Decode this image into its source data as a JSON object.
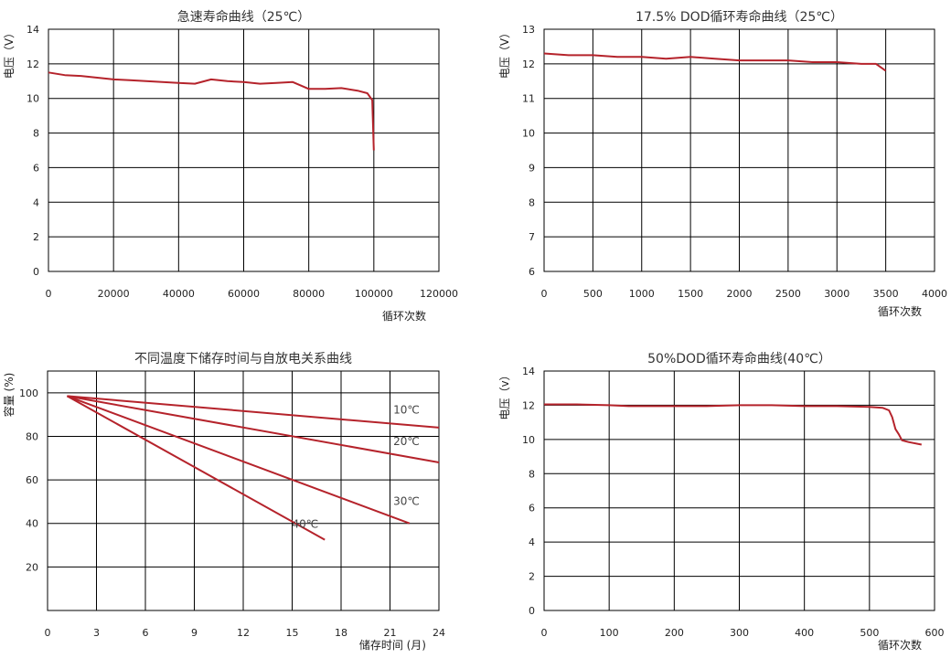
{
  "chart_data": [
    {
      "type": "line",
      "title": "急速寿命曲线（25℃）",
      "xlabel": "循环次数",
      "ylabel": "电压（V）",
      "xlim": [
        0,
        120000
      ],
      "ylim": [
        0,
        14
      ],
      "xticks": [
        "0",
        "20000",
        "40000",
        "60000",
        "80000",
        "100000",
        "120000"
      ],
      "yticks": [
        "0",
        "2",
        "4",
        "6",
        "8",
        "10",
        "12",
        "14"
      ],
      "grid": true,
      "line_color": "#b5232b",
      "series": [
        {
          "x": [
            0,
            5000,
            10000,
            15000,
            20000,
            25000,
            30000,
            35000,
            40000,
            45000,
            50000,
            55000,
            60000,
            65000,
            70000,
            75000,
            80000,
            85000,
            90000,
            95000,
            98000,
            99500,
            100000
          ],
          "y": [
            11.5,
            11.35,
            11.3,
            11.2,
            11.1,
            11.05,
            11.0,
            10.95,
            10.9,
            10.85,
            11.1,
            11.0,
            10.95,
            10.85,
            10.9,
            10.95,
            10.55,
            10.55,
            10.6,
            10.45,
            10.3,
            9.9,
            7.0
          ]
        }
      ]
    },
    {
      "type": "line",
      "title": "17.5% DOD循环寿命曲线（25℃）",
      "xlabel": "循环次数",
      "ylabel": "电压（V）",
      "xlim": [
        0,
        4000
      ],
      "ylim": [
        6,
        13
      ],
      "xticks": [
        "0",
        "500",
        "1000",
        "1500",
        "2000",
        "2500",
        "3000",
        "3500",
        "4000"
      ],
      "yticks": [
        "6",
        "7",
        "8",
        "9",
        "10",
        "11",
        "12",
        "13"
      ],
      "grid": true,
      "line_color": "#b5232b",
      "series": [
        {
          "x": [
            0,
            250,
            500,
            750,
            1000,
            1250,
            1500,
            1750,
            2000,
            2250,
            2500,
            2750,
            3000,
            3250,
            3400,
            3500
          ],
          "y": [
            12.3,
            12.25,
            12.25,
            12.2,
            12.2,
            12.15,
            12.2,
            12.15,
            12.1,
            12.1,
            12.1,
            12.05,
            12.05,
            12.0,
            12.0,
            11.8
          ]
        }
      ]
    },
    {
      "type": "line",
      "title": "不同温度下储存时间与自放电关系曲线",
      "xlabel": "储存时间 (月)",
      "ylabel": "容量 (%)",
      "xlim": [
        0,
        24
      ],
      "ylim": [
        0,
        110
      ],
      "xticks": [
        "0",
        "3",
        "6",
        "9",
        "12",
        "15",
        "18",
        "21",
        "24"
      ],
      "yticks": [
        "20",
        "40",
        "60",
        "80",
        "100"
      ],
      "grid": true,
      "line_color": "#b5232b",
      "series": [
        {
          "name": "10℃",
          "x": [
            1.2,
            24
          ],
          "y": [
            98.5,
            84
          ]
        },
        {
          "name": "20℃",
          "x": [
            1.2,
            24
          ],
          "y": [
            98.5,
            68
          ]
        },
        {
          "name": "30℃",
          "x": [
            1.2,
            22.2
          ],
          "y": [
            98.5,
            40
          ]
        },
        {
          "name": "40℃",
          "x": [
            1.2,
            17
          ],
          "y": [
            98.5,
            32.5
          ]
        }
      ],
      "annotations": [
        {
          "text": "10℃",
          "x": 21.2,
          "y": 90.5
        },
        {
          "text": "20℃",
          "x": 21.2,
          "y": 76
        },
        {
          "text": "30℃",
          "x": 21.2,
          "y": 48.5
        },
        {
          "text": "40℃",
          "x": 15.0,
          "y": 38
        }
      ]
    },
    {
      "type": "line",
      "title": "50%DOD循环寿命曲线(40℃）",
      "xlabel": "循环次数",
      "ylabel": "电压（v）",
      "xlim": [
        0,
        600
      ],
      "ylim": [
        0,
        14
      ],
      "xticks": [
        "0",
        "100",
        "200",
        "300",
        "400",
        "500",
        "600"
      ],
      "yticks": [
        "0",
        "2",
        "4",
        "6",
        "8",
        "10",
        "12",
        "14"
      ],
      "grid": true,
      "line_color": "#b5232b",
      "series": [
        {
          "x": [
            0,
            50,
            100,
            130,
            150,
            200,
            250,
            300,
            350,
            400,
            450,
            500,
            520,
            530,
            535,
            540,
            545,
            550,
            560,
            580
          ],
          "y": [
            12.05,
            12.05,
            12.0,
            11.95,
            11.95,
            11.95,
            11.95,
            12.0,
            12.0,
            11.95,
            11.95,
            11.9,
            11.85,
            11.7,
            11.3,
            10.6,
            10.3,
            9.95,
            9.85,
            9.7
          ]
        }
      ]
    }
  ]
}
